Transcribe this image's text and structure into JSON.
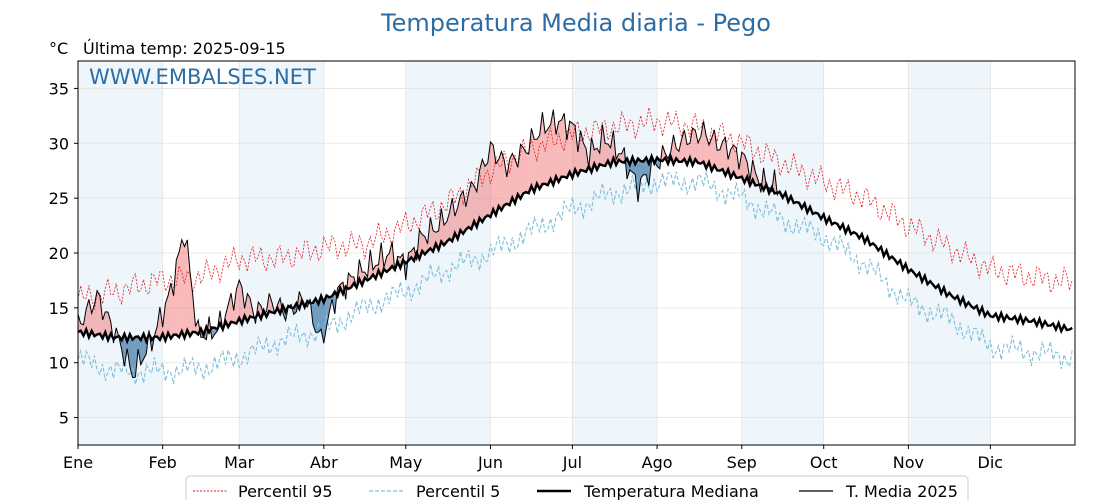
{
  "chart_data": {
    "type": "line",
    "title": "Temperatura Media diaria - Pego",
    "y_unit": "°C",
    "last_reading": "Última temp: 2025-09-15",
    "watermark": "WWW.EMBALSES.NET",
    "ylim": [
      2.5,
      37.5
    ],
    "yticks": [
      5,
      10,
      15,
      20,
      25,
      30,
      35
    ],
    "months": [
      "Ene",
      "Feb",
      "Mar",
      "Abr",
      "May",
      "Jun",
      "Jul",
      "Ago",
      "Sep",
      "Oct",
      "Nov",
      "Dic"
    ],
    "grid": true,
    "legend_position": "bottom",
    "legend": [
      "Percentil 95",
      "Percentil 5",
      "Temperatura Mediana",
      "T. Media 2025"
    ],
    "colors": {
      "title": "#2e6da4",
      "watermark": "#2e6da4",
      "p95": "#e31a1c",
      "p5": "#7fbfd9",
      "median": "#000000",
      "current": "#000000",
      "above": "#f08080",
      "below": "#1f5f9a",
      "band": "#eef5fb"
    },
    "series": {
      "p95": [
        [
          1,
          15.8
        ],
        [
          15,
          16.5
        ],
        [
          31,
          17.5
        ],
        [
          46,
          17.8
        ],
        [
          60,
          19.5
        ],
        [
          75,
          19.5
        ],
        [
          91,
          20.5
        ],
        [
          106,
          20.8
        ],
        [
          121,
          22.5
        ],
        [
          136,
          24.5
        ],
        [
          152,
          27.5
        ],
        [
          167,
          29.5
        ],
        [
          182,
          30.8
        ],
        [
          197,
          31.5
        ],
        [
          213,
          32.0
        ],
        [
          228,
          31.5
        ],
        [
          244,
          30.0
        ],
        [
          259,
          28.2
        ],
        [
          274,
          26.5
        ],
        [
          289,
          25.0
        ],
        [
          305,
          22.5
        ],
        [
          320,
          20.5
        ],
        [
          335,
          18.5
        ],
        [
          350,
          17.8
        ],
        [
          365,
          17.3
        ]
      ],
      "p5": [
        [
          1,
          10.3
        ],
        [
          15,
          9.2
        ],
        [
          31,
          9.2
        ],
        [
          46,
          9.5
        ],
        [
          60,
          10.5
        ],
        [
          75,
          12.0
        ],
        [
          91,
          13.0
        ],
        [
          106,
          15.0
        ],
        [
          121,
          16.5
        ],
        [
          136,
          18.5
        ],
        [
          152,
          20.0
        ],
        [
          167,
          22.0
        ],
        [
          182,
          24.0
        ],
        [
          197,
          25.5
        ],
        [
          213,
          26.5
        ],
        [
          228,
          26.5
        ],
        [
          244,
          25.0
        ],
        [
          259,
          23.0
        ],
        [
          274,
          21.5
        ],
        [
          289,
          19.0
        ],
        [
          305,
          15.5
        ],
        [
          320,
          14.0
        ],
        [
          335,
          11.5
        ],
        [
          350,
          11.0
        ],
        [
          365,
          10.5
        ]
      ],
      "median": [
        [
          1,
          12.8
        ],
        [
          15,
          12.3
        ],
        [
          31,
          12.3
        ],
        [
          46,
          12.8
        ],
        [
          60,
          13.8
        ],
        [
          75,
          14.8
        ],
        [
          91,
          15.8
        ],
        [
          106,
          17.5
        ],
        [
          121,
          19.2
        ],
        [
          136,
          21.0
        ],
        [
          152,
          23.5
        ],
        [
          167,
          25.8
        ],
        [
          182,
          27.2
        ],
        [
          197,
          28.3
        ],
        [
          213,
          28.5
        ],
        [
          228,
          28.3
        ],
        [
          244,
          26.8
        ],
        [
          259,
          25.3
        ],
        [
          274,
          23.2
        ],
        [
          289,
          21.3
        ],
        [
          305,
          18.5
        ],
        [
          320,
          16.2
        ],
        [
          335,
          14.3
        ],
        [
          350,
          13.8
        ],
        [
          365,
          13.0
        ]
      ],
      "current_2025": [
        [
          1,
          13.5
        ],
        [
          8,
          16.0
        ],
        [
          15,
          12.5
        ],
        [
          21,
          9.0
        ],
        [
          28,
          12.0
        ],
        [
          35,
          16.5
        ],
        [
          40,
          22.0
        ],
        [
          45,
          12.5
        ],
        [
          52,
          13.0
        ],
        [
          60,
          17.0
        ],
        [
          66,
          14.5
        ],
        [
          72,
          15.5
        ],
        [
          78,
          14.5
        ],
        [
          84,
          16.0
        ],
        [
          90,
          12.0
        ],
        [
          96,
          16.5
        ],
        [
          103,
          18.0
        ],
        [
          109,
          19.0
        ],
        [
          115,
          20.0
        ],
        [
          121,
          19.0
        ],
        [
          127,
          21.5
        ],
        [
          133,
          22.5
        ],
        [
          140,
          24.5
        ],
        [
          146,
          26.0
        ],
        [
          152,
          29.5
        ],
        [
          158,
          28.0
        ],
        [
          165,
          29.5
        ],
        [
          171,
          31.5
        ],
        [
          177,
          32.0
        ],
        [
          182,
          31.5
        ],
        [
          188,
          29.0
        ],
        [
          194,
          30.5
        ],
        [
          200,
          29.0
        ],
        [
          206,
          26.0
        ],
        [
          212,
          28.0
        ],
        [
          218,
          29.5
        ],
        [
          224,
          30.5
        ],
        [
          230,
          31.0
        ],
        [
          235,
          30.0
        ],
        [
          240,
          29.5
        ],
        [
          245,
          28.5
        ],
        [
          251,
          26.5
        ],
        [
          258,
          26.0
        ]
      ]
    }
  }
}
